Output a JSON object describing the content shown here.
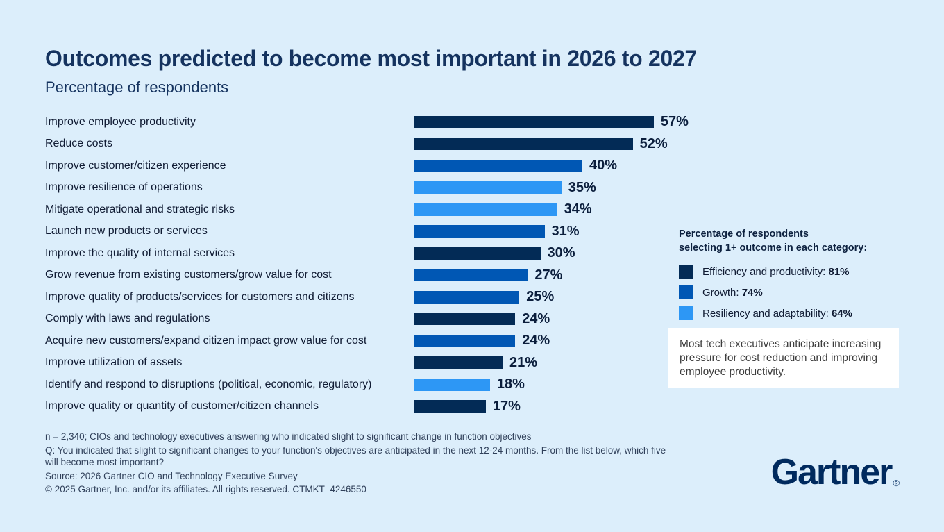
{
  "page": {
    "background": "#dceefb"
  },
  "header": {
    "title": "Outcomes predicted to become most important in 2026 to 2027",
    "subtitle": "Percentage of respondents"
  },
  "chart_data": {
    "type": "bar",
    "orientation": "horizontal",
    "title": "Outcomes predicted to become most important in 2026 to 2027",
    "xlabel": "Percentage of respondents",
    "ylabel": "",
    "xlim": [
      0,
      60
    ],
    "grid": false,
    "legend_position": "right",
    "categories": [
      "Improve employee productivity",
      "Reduce costs",
      "Improve customer/citizen experience",
      "Improve resilience of operations",
      "Mitigate operational and strategic risks",
      "Launch new products or services",
      "Improve the quality of internal services",
      "Grow revenue from existing customers/grow value for cost",
      "Improve quality of products/services for customers and citizens",
      "Comply with laws and regulations",
      "Acquire new customers/expand citizen impact grow value for cost",
      "Improve utilization of assets",
      "Identify and respond to disruptions (political, economic, regulatory)",
      "Improve quality or quantity of customer/citizen channels"
    ],
    "values": [
      57,
      52,
      40,
      35,
      34,
      31,
      30,
      27,
      25,
      24,
      24,
      21,
      18,
      17
    ],
    "value_labels": [
      "57%",
      "52%",
      "40%",
      "35%",
      "34%",
      "31%",
      "30%",
      "27%",
      "25%",
      "24%",
      "24%",
      "21%",
      "18%",
      "17%"
    ],
    "row_series": [
      "efficiency",
      "efficiency",
      "growth",
      "resiliency",
      "resiliency",
      "growth",
      "efficiency",
      "growth",
      "growth",
      "efficiency",
      "growth",
      "efficiency",
      "resiliency",
      "efficiency"
    ],
    "series_colors": {
      "efficiency": "#032b56",
      "growth": "#0057b4",
      "resiliency": "#2d97f5"
    }
  },
  "legend": {
    "heading_line1": "Percentage of respondents",
    "heading_line2": "selecting 1+ outcome in each category:",
    "items": [
      {
        "label": "Efficiency and productivity: ",
        "value": "81%",
        "series": "efficiency"
      },
      {
        "label": "Growth: ",
        "value": "74%",
        "series": "growth"
      },
      {
        "label": "Resiliency and adaptability: ",
        "value": "64%",
        "series": "resiliency"
      }
    ]
  },
  "callout": {
    "text": "Most tech executives anticipate increasing pressure for cost reduction and improving employee productivity."
  },
  "footnotes": {
    "line1": "n = 2,340; CIOs and technology executives answering who indicated slight to significant change in function objectives",
    "line2": "Q: You indicated that slight to significant changes to your function's objectives are anticipated in the next 12-24 months. From the list below, which five will become most important?",
    "line3": "Source: 2026 Gartner CIO and Technology Executive Survey",
    "line4": "© 2025 Gartner, Inc. and/or its affiliates. All rights reserved. CTMKT_4246550"
  },
  "logo": {
    "text": "Gartner",
    "registered": "®"
  }
}
